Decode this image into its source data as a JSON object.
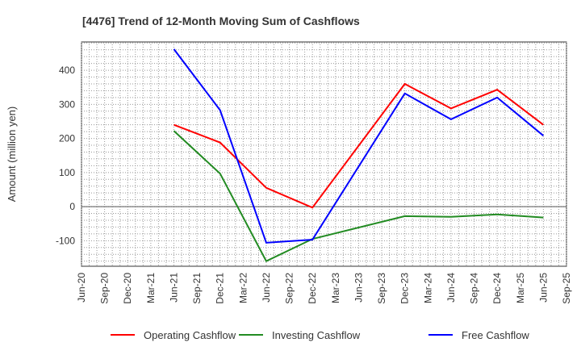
{
  "chart_data": {
    "type": "line",
    "title": "[4476]  Trend of 12-Month Moving Sum of Cashflows",
    "xlabel": "",
    "ylabel": "Amount (million yen)",
    "ylim": [
      -175,
      483
    ],
    "yticks": [
      -100,
      0,
      100,
      200,
      300,
      400
    ],
    "ytick_labels": [
      "-100",
      "0",
      "100",
      "200",
      "300",
      "400"
    ],
    "categories": [
      "Jun-20",
      "Sep-20",
      "Dec-20",
      "Mar-21",
      "Jun-21",
      "Sep-21",
      "Dec-21",
      "Mar-22",
      "Jun-22",
      "Sep-22",
      "Dec-22",
      "Mar-23",
      "Jun-23",
      "Sep-23",
      "Dec-23",
      "Mar-24",
      "Jun-24",
      "Sep-24",
      "Dec-24",
      "Mar-25",
      "Jun-25",
      "Sep-25"
    ],
    "grid": true,
    "legend_position": "bottom",
    "series": [
      {
        "name": "Operating Cashflow",
        "color": "#ff0000",
        "points": [
          [
            "Jun-21",
            240
          ],
          [
            "Dec-21",
            188
          ],
          [
            "Jun-22",
            55
          ],
          [
            "Dec-22",
            -3
          ],
          [
            "Dec-23",
            360
          ],
          [
            "Jun-24",
            288
          ],
          [
            "Dec-24",
            343
          ],
          [
            "Jun-25",
            240
          ]
        ]
      },
      {
        "name": "Investing Cashflow",
        "color": "#228b22",
        "points": [
          [
            "Jun-21",
            222
          ],
          [
            "Dec-21",
            97
          ],
          [
            "Jun-22",
            -160
          ],
          [
            "Dec-22",
            -95
          ],
          [
            "Dec-23",
            -28
          ],
          [
            "Jun-24",
            -30
          ],
          [
            "Dec-24",
            -23
          ],
          [
            "Jun-25",
            -32
          ]
        ]
      },
      {
        "name": "Free Cashflow",
        "color": "#0000ff",
        "points": [
          [
            "Jun-21",
            462
          ],
          [
            "Dec-21",
            283
          ],
          [
            "Jun-22",
            -106
          ],
          [
            "Dec-22",
            -97
          ],
          [
            "Dec-23",
            332
          ],
          [
            "Jun-24",
            256
          ],
          [
            "Dec-24",
            320
          ],
          [
            "Jun-25",
            208
          ]
        ]
      }
    ]
  }
}
